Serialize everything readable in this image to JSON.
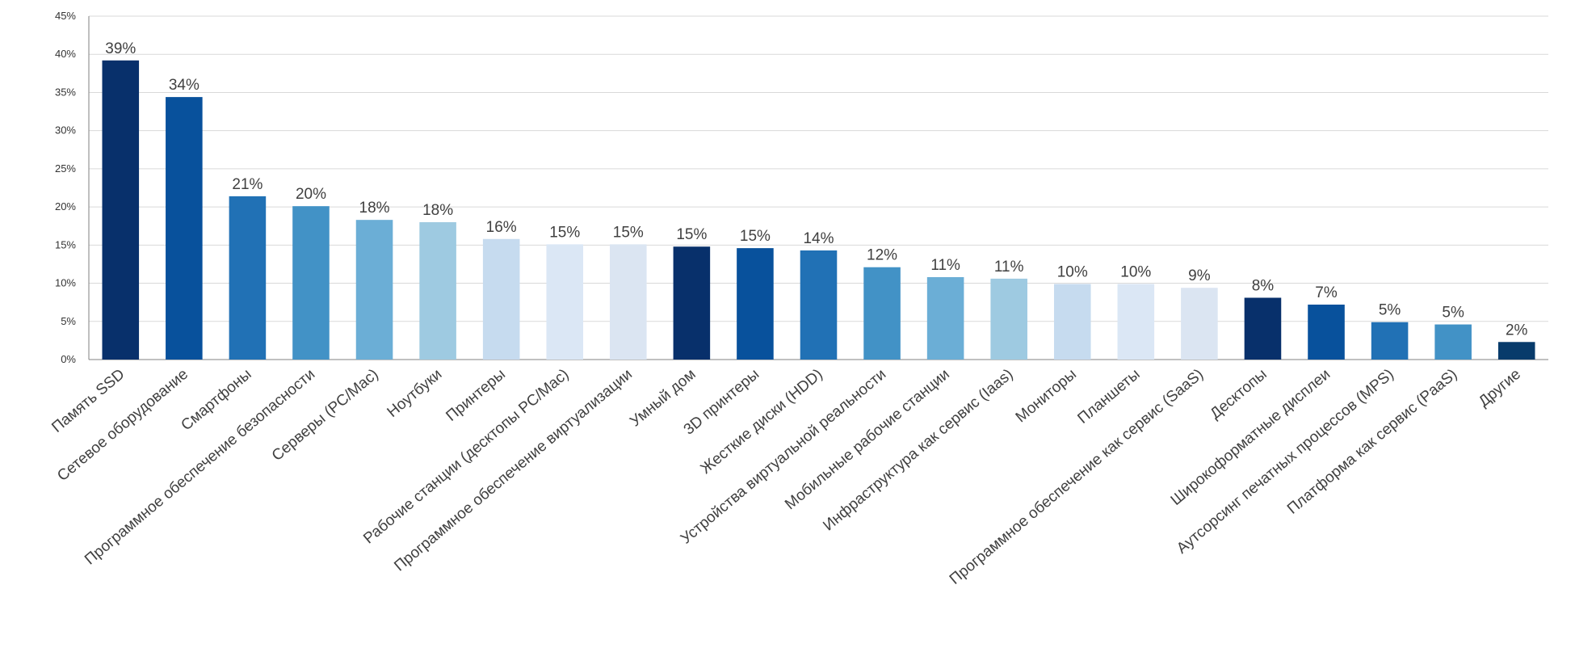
{
  "chart_data": {
    "type": "bar",
    "title": "",
    "xlabel": "",
    "ylabel": "",
    "ylim": [
      0,
      45
    ],
    "ytick_step": 5,
    "ytick_format": "{v}%",
    "grid": true,
    "legend": "none",
    "categories": [
      "Память SSD",
      "Сетевое оборудование",
      "Смартфоны",
      "Программное обеспечение безопасности",
      "Серверы (PC/Mac)",
      "Ноутбуки",
      "Принтеры",
      "Рабочие станции (десктопы PC/Mac)",
      "Программное обеспечение виртуализации",
      "Умный дом",
      "3D принтеры",
      "Жесткие диски (HDD)",
      "Устройства виртуальной реальности",
      "Мобильные рабочие станции",
      "Инфраструктура как сервис (Iaas)",
      "Мониторы",
      "Планшеты",
      "Программное обеспечение как сервис (SaaS)",
      "Десктопы",
      "Широкоформатные дисплеи",
      "Аутсорсинг печатных процессов (MPS)",
      "Платформа как сервис (PaaS)",
      "Другие"
    ],
    "values": [
      39.2,
      34.4,
      21.4,
      20.1,
      18.3,
      18.0,
      15.8,
      15.1,
      15.1,
      14.8,
      14.6,
      14.3,
      12.1,
      10.8,
      10.6,
      9.9,
      9.9,
      9.4,
      8.1,
      7.2,
      4.9,
      4.6,
      2.3
    ],
    "data_labels": [
      "39%",
      "34%",
      "21%",
      "20%",
      "18%",
      "18%",
      "16%",
      "15%",
      "15%",
      "15%",
      "15%",
      "14%",
      "12%",
      "11%",
      "11%",
      "10%",
      "10%",
      "9%",
      "8%",
      "7%",
      "5%",
      "5%",
      "2%"
    ],
    "colors": [
      "#08306b",
      "#08519c",
      "#2171b5",
      "#4292c6",
      "#6baed6",
      "#9ecae1",
      "#c6dbef",
      "#dbe7f5",
      "#dbe5f2",
      "#08306b",
      "#08519c",
      "#2171b5",
      "#4292c6",
      "#6baed6",
      "#9ecae1",
      "#c6dbef",
      "#dbe7f5",
      "#dbe5f2",
      "#08306b",
      "#08519c",
      "#2171b5",
      "#4292c6",
      "#083b6b"
    ]
  }
}
